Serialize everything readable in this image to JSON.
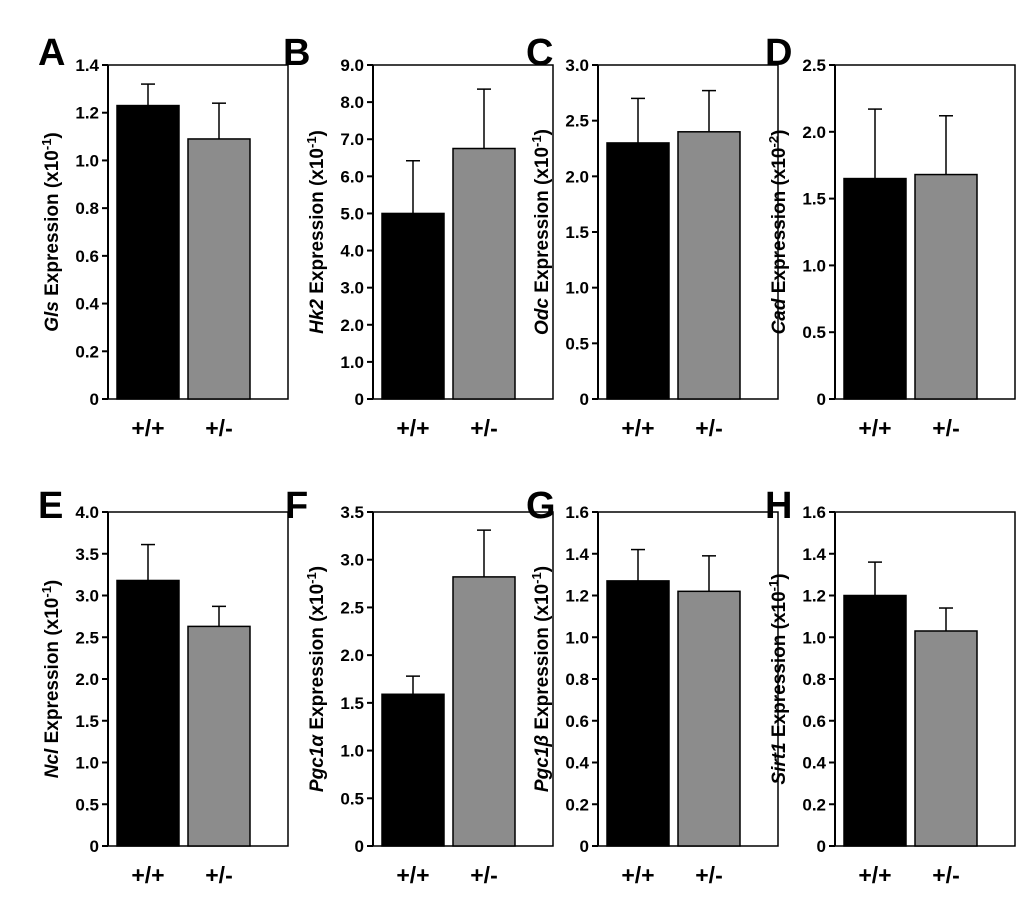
{
  "figure": {
    "title": ""
  },
  "colors": {
    "wildtype": "#000000",
    "heterozygous": "#8c8c8c"
  },
  "chart_data": [
    {
      "panel": "A",
      "type": "bar",
      "ylabel": {
        "gene": "Gls",
        "text": " Expression (x10",
        "exp": "-1",
        "close": ")"
      },
      "ylim": [
        0,
        1.4
      ],
      "ticks": [
        "0",
        "0.2",
        "0.4",
        "0.6",
        "0.8",
        "1.0",
        "1.2",
        "1.4"
      ],
      "categories": [
        "+/+",
        "+/-"
      ],
      "values": [
        1.23,
        1.09
      ],
      "errors": [
        0.09,
        0.15
      ]
    },
    {
      "panel": "B",
      "type": "bar",
      "ylabel": {
        "gene": "Hk2",
        "text": " Expression (x10",
        "exp": "-1",
        "close": ")"
      },
      "ylim": [
        0,
        9.0
      ],
      "ticks": [
        "0",
        "1.0",
        "2.0",
        "3.0",
        "4.0",
        "5.0",
        "6.0",
        "7.0",
        "8.0",
        "9.0"
      ],
      "categories": [
        "+/+",
        "+/-"
      ],
      "values": [
        5.0,
        6.75
      ],
      "errors": [
        1.42,
        1.6
      ]
    },
    {
      "panel": "C",
      "type": "bar",
      "ylabel": {
        "gene": "Odc",
        "text": " Expression (x10",
        "exp": "-1",
        "close": ")"
      },
      "ylim": [
        0,
        3.0
      ],
      "ticks": [
        "0",
        "0.5",
        "1.0",
        "1.5",
        "2.0",
        "2.5",
        "3.0"
      ],
      "categories": [
        "+/+",
        "+/-"
      ],
      "values": [
        2.3,
        2.4
      ],
      "errors": [
        0.4,
        0.37
      ]
    },
    {
      "panel": "D",
      "type": "bar",
      "ylabel": {
        "gene": "Cad",
        "text": " Expression (x10",
        "exp": "-2",
        "close": ")"
      },
      "ylim": [
        0,
        2.5
      ],
      "ticks": [
        "0",
        "0.5",
        "1.0",
        "1.5",
        "2.0",
        "2.5"
      ],
      "categories": [
        "+/+",
        "+/-"
      ],
      "values": [
        1.65,
        1.68
      ],
      "errors": [
        0.52,
        0.44
      ]
    },
    {
      "panel": "E",
      "type": "bar",
      "ylabel": {
        "gene": "Ncl",
        "text": " Expression (x10",
        "exp": "-1",
        "close": ")"
      },
      "ylim": [
        0,
        4.0
      ],
      "ticks": [
        "0",
        "0.5",
        "1.0",
        "1.5",
        "2.0",
        "2.5",
        "3.0",
        "3.5",
        "4.0"
      ],
      "categories": [
        "+/+",
        "+/-"
      ],
      "values": [
        3.18,
        2.63
      ],
      "errors": [
        0.43,
        0.24
      ]
    },
    {
      "panel": "F",
      "type": "bar",
      "ylabel": {
        "gene": "Pgc1α",
        "text": " Expression (x10",
        "exp": "-1",
        "close": ")"
      },
      "ylim": [
        0,
        3.5
      ],
      "ticks": [
        "0",
        "0.5",
        "1.0",
        "1.5",
        "2.0",
        "2.5",
        "3.0",
        "3.5"
      ],
      "categories": [
        "+/+",
        "+/-"
      ],
      "values": [
        1.59,
        2.82
      ],
      "errors": [
        0.19,
        0.49
      ]
    },
    {
      "panel": "G",
      "type": "bar",
      "ylabel": {
        "gene": "Pgc1β",
        "text": " Expression (x10",
        "exp": "-1",
        "close": ")"
      },
      "ylim": [
        0,
        1.6
      ],
      "ticks": [
        "0",
        "0.2",
        "0.4",
        "0.6",
        "0.8",
        "1.0",
        "1.2",
        "1.4",
        "1.6"
      ],
      "categories": [
        "+/+",
        "+/-"
      ],
      "values": [
        1.27,
        1.22
      ],
      "errors": [
        0.15,
        0.17
      ]
    },
    {
      "panel": "H",
      "type": "bar",
      "ylabel": {
        "gene": "Sirt1",
        "text": " Expression (x10",
        "exp": "-1",
        "close": ")"
      },
      "ylim": [
        0,
        1.6
      ],
      "ticks": [
        "0",
        "0.2",
        "0.4",
        "0.6",
        "0.8",
        "1.0",
        "1.2",
        "1.4",
        "1.6"
      ],
      "categories": [
        "+/+",
        "+/-"
      ],
      "values": [
        1.2,
        1.03
      ],
      "errors": [
        0.16,
        0.11
      ]
    }
  ]
}
